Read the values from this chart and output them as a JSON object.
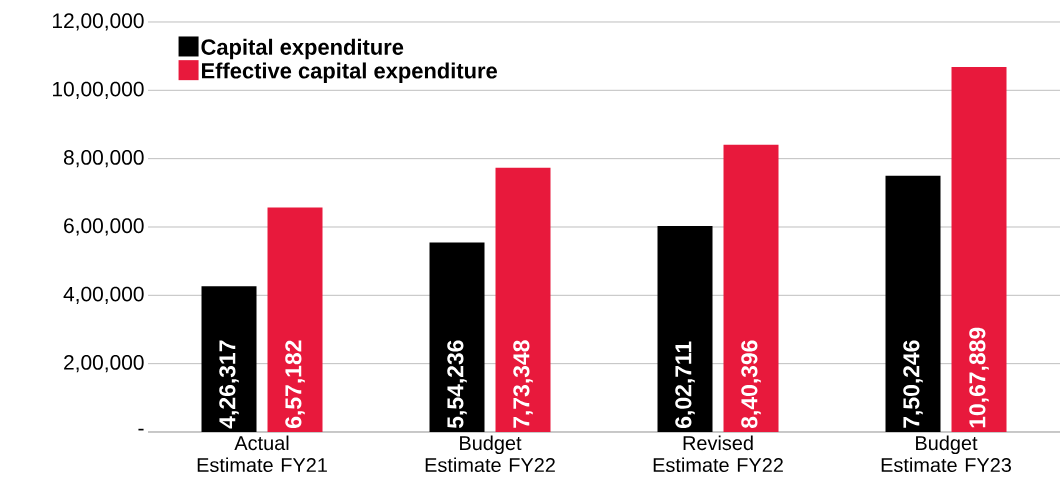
{
  "chart_data": {
    "type": "bar",
    "categories": [
      "Actual Estimate FY21",
      "Budget Estimate FY22",
      "Revised Estimate FY22",
      "Budget Estimate FY23"
    ],
    "series": [
      {
        "name": "Capital expenditure",
        "color": "#000000",
        "values": [
          426317,
          554236,
          602711,
          750246
        ],
        "value_labels": [
          "4,26,317",
          "5,54,236",
          "6,02,711",
          "7,50,246"
        ]
      },
      {
        "name": "Effective capital expenditure",
        "color": "#e8193c",
        "values": [
          657182,
          773348,
          840396,
          1067889
        ],
        "value_labels": [
          "6,57,182",
          "7,73,348",
          "8,40,396",
          "10,67,889"
        ]
      }
    ],
    "ylim": [
      0,
      1200000
    ],
    "yticks": [
      {
        "value": 0,
        "label": "-"
      },
      {
        "value": 200000,
        "label": "2,00,000"
      },
      {
        "value": 400000,
        "label": "4,00,000"
      },
      {
        "value": 600000,
        "label": "6,00,000"
      },
      {
        "value": 800000,
        "label": "8,00,000"
      },
      {
        "value": 1000000,
        "label": "10,00,000"
      },
      {
        "value": 1200000,
        "label": "12,00,000"
      }
    ],
    "grid": "y",
    "legend": "top left"
  }
}
